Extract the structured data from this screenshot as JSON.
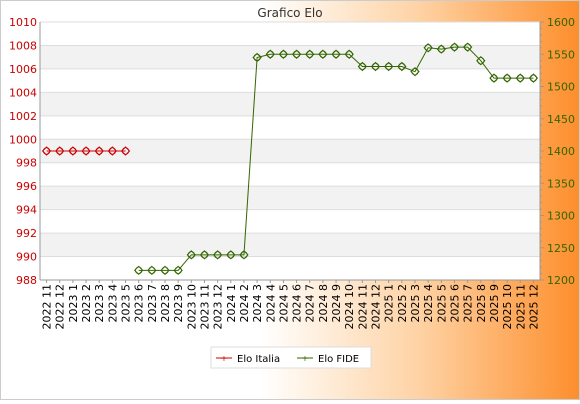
{
  "chart_data": {
    "type": "line",
    "title": "Grafico Elo",
    "categories": [
      "2022 11",
      "2022 12",
      "2023 1",
      "2023 2",
      "2023 3",
      "2023 4",
      "2023 5",
      "2023 6",
      "2023 7",
      "2023 8",
      "2023 9",
      "2023 10",
      "2023 11",
      "2023 12",
      "2024 1",
      "2024 2",
      "2024 3",
      "2024 4",
      "2024 5",
      "2024 6",
      "2024 7",
      "2024 8",
      "2024 9",
      "2024 10",
      "2024 11",
      "2024 12",
      "2025 1",
      "2025 2",
      "2025 3",
      "2025 4",
      "2025 5",
      "2025 6",
      "2025 7",
      "2025 8",
      "2025 9",
      "2025 10",
      "2025 11",
      "2025 12"
    ],
    "left_axis": {
      "ylim": [
        988,
        1010
      ],
      "ticks": [
        988,
        990,
        992,
        994,
        996,
        998,
        1000,
        1002,
        1004,
        1006,
        1008,
        1010
      ],
      "color": "#cc0000"
    },
    "right_axis": {
      "ylim": [
        1200,
        1600
      ],
      "ticks": [
        1200,
        1250,
        1300,
        1350,
        1400,
        1450,
        1500,
        1550,
        1600
      ],
      "color": "#336600"
    },
    "series": [
      {
        "name": "Elo Italia",
        "axis": "left",
        "color": "#cc0000",
        "values": [
          999,
          999,
          999,
          999,
          999,
          999,
          999,
          null,
          null,
          null,
          null,
          null,
          null,
          null,
          null,
          null,
          null,
          null,
          null,
          null,
          null,
          null,
          null,
          null,
          null,
          null,
          null,
          null,
          null,
          null,
          null,
          null,
          null,
          null,
          null,
          null,
          null,
          null
        ]
      },
      {
        "name": "Elo FIDE",
        "axis": "right",
        "color": "#336600",
        "values": [
          null,
          null,
          null,
          null,
          null,
          null,
          null,
          1215,
          1215,
          1215,
          1215,
          1239,
          1239,
          1239,
          1239,
          1239,
          1545,
          1550,
          1550,
          1550,
          1550,
          1550,
          1550,
          1550,
          1531,
          1531,
          1531,
          1531,
          1523,
          1560,
          1558,
          1561,
          1561,
          1540,
          1513,
          1513,
          1513,
          1513
        ]
      }
    ],
    "legend": {
      "position": "bottom"
    },
    "grid": true
  }
}
